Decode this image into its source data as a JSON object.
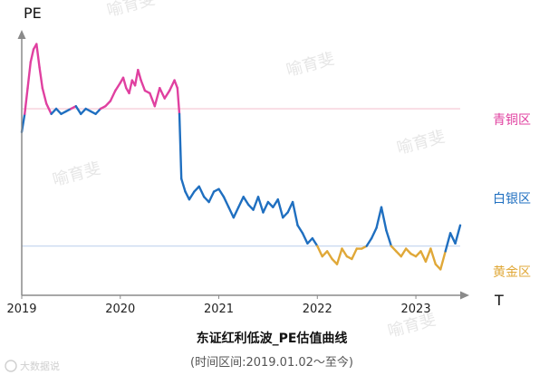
{
  "chart_data": {
    "type": "line",
    "title": "东证红利低波_PE估值曲线",
    "subtitle": "(时间区间:2019.01.02～至今)",
    "ylabel": "PE",
    "xlabel": "T",
    "x_ticks": [
      "2019",
      "2020",
      "2021",
      "2022",
      "2023"
    ],
    "x_range": [
      2019.0,
      2023.45
    ],
    "thresholds": {
      "bronze_line": 0.72,
      "gold_line": 0.19
    },
    "zones": [
      {
        "label": "青铜区",
        "color": "#e040a0"
      },
      {
        "label": "白银区",
        "color": "#1f6fc0"
      },
      {
        "label": "黄金区",
        "color": "#e0a838"
      }
    ],
    "line_color_silver": "#1f6fc0",
    "line_color_bronze": "#e040a0",
    "line_color_gold": "#e0a838",
    "threshold_line_colors": {
      "upper": "#f5c3d2",
      "lower": "#c8d8f0"
    },
    "y_scale_note": "relative PE level, 0 = x-axis, 1 = top of axis",
    "series": [
      {
        "x": [
          2019.0,
          2019.03,
          2019.06,
          2019.09,
          2019.12,
          2019.15,
          2019.18,
          2019.21,
          2019.25,
          2019.3,
          2019.35,
          2019.4,
          2019.45,
          2019.5,
          2019.55,
          2019.6,
          2019.65,
          2019.7,
          2019.75,
          2019.8,
          2019.85,
          2019.9,
          2019.95,
          2020.0,
          2020.03,
          2020.06,
          2020.09,
          2020.12,
          2020.15,
          2020.18,
          2020.21,
          2020.25,
          2020.3,
          2020.35,
          2020.4,
          2020.45,
          2020.5,
          2020.55,
          2020.58,
          2020.6,
          2020.62,
          2020.66,
          2020.7,
          2020.75,
          2020.8,
          2020.85,
          2020.9,
          2020.95,
          2021.0,
          2021.05,
          2021.1,
          2021.15,
          2021.2,
          2021.25,
          2021.3,
          2021.35,
          2021.4,
          2021.45,
          2021.5,
          2021.55,
          2021.6,
          2021.65,
          2021.7,
          2021.75,
          2021.8,
          2021.85,
          2021.9,
          2021.95,
          2022.0,
          2022.05,
          2022.1,
          2022.15,
          2022.2,
          2022.25,
          2022.3,
          2022.35,
          2022.4,
          2022.45,
          2022.5,
          2022.55,
          2022.6,
          2022.65,
          2022.7,
          2022.75,
          2022.8,
          2022.85,
          2022.9,
          2022.95,
          2023.0,
          2023.05,
          2023.1,
          2023.15,
          2023.2,
          2023.25,
          2023.3,
          2023.35,
          2023.4,
          2023.45
        ],
        "y": [
          0.63,
          0.7,
          0.8,
          0.9,
          0.95,
          0.97,
          0.88,
          0.8,
          0.74,
          0.7,
          0.72,
          0.7,
          0.71,
          0.72,
          0.73,
          0.7,
          0.72,
          0.71,
          0.7,
          0.72,
          0.73,
          0.75,
          0.79,
          0.82,
          0.84,
          0.8,
          0.78,
          0.83,
          0.81,
          0.87,
          0.83,
          0.79,
          0.78,
          0.73,
          0.8,
          0.76,
          0.79,
          0.83,
          0.8,
          0.7,
          0.45,
          0.4,
          0.37,
          0.4,
          0.42,
          0.38,
          0.36,
          0.4,
          0.41,
          0.38,
          0.34,
          0.3,
          0.34,
          0.38,
          0.35,
          0.33,
          0.38,
          0.32,
          0.36,
          0.34,
          0.37,
          0.3,
          0.32,
          0.36,
          0.27,
          0.24,
          0.2,
          0.22,
          0.19,
          0.15,
          0.17,
          0.14,
          0.12,
          0.18,
          0.15,
          0.14,
          0.18,
          0.18,
          0.19,
          0.22,
          0.26,
          0.34,
          0.25,
          0.19,
          0.17,
          0.15,
          0.18,
          0.16,
          0.15,
          0.17,
          0.13,
          0.18,
          0.12,
          0.1,
          0.17,
          0.24,
          0.2,
          0.27
        ]
      }
    ]
  },
  "watermarks": {
    "author_text": "喻育斐",
    "logo_text": "大数据说"
  }
}
